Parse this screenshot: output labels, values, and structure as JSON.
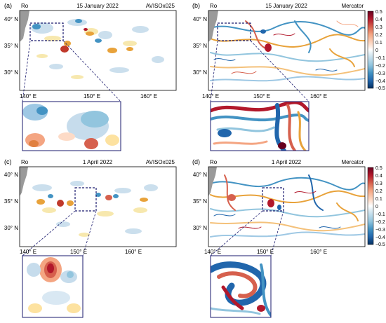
{
  "panels": [
    {
      "letter": "(a)",
      "var": "Ro",
      "date": "15 January 2022",
      "source": "AVISOx025",
      "lat_labels": [
        "40° N",
        "35° N",
        "30° N"
      ],
      "lon_labels": [
        "140° E",
        "150° E",
        "160° E"
      ]
    },
    {
      "letter": "(b)",
      "var": "Ro",
      "date": "15 January 2022",
      "source": "Mercator",
      "lat_labels": [
        "40° N",
        "35° N",
        "30° N"
      ],
      "lon_labels": [
        "140° E",
        "150° E",
        "160° E"
      ]
    },
    {
      "letter": "(c)",
      "var": "Ro",
      "date": "1 April 2022",
      "source": "AVISOx025",
      "lat_labels": [
        "40° N",
        "35° N",
        "30° N"
      ],
      "lon_labels": [
        "140° E",
        "150° E",
        "160° E"
      ]
    },
    {
      "letter": "(d)",
      "var": "Ro",
      "date": "1 April 2022",
      "source": "Mercator",
      "lat_labels": [
        "40° N",
        "35° N",
        "30° N"
      ],
      "lon_labels": [
        "140° E",
        "150° E",
        "160° E"
      ]
    }
  ],
  "colorbar": {
    "ticks": [
      "0.5",
      "0.4",
      "0.3",
      "0.2",
      "0.1",
      "0",
      "−0.1",
      "−0.2",
      "−0.3",
      "−0.4",
      "−0.5"
    ],
    "colors": [
      "#67001f",
      "#b2182b",
      "#d6604d",
      "#f4a582",
      "#fddbc7",
      "#ffffff",
      "#d1e5f0",
      "#92c5de",
      "#4393c3",
      "#2166ac",
      "#053061"
    ]
  },
  "land_color": "#9a9a9a",
  "zoom_outline_color": "#1a1a6e"
}
